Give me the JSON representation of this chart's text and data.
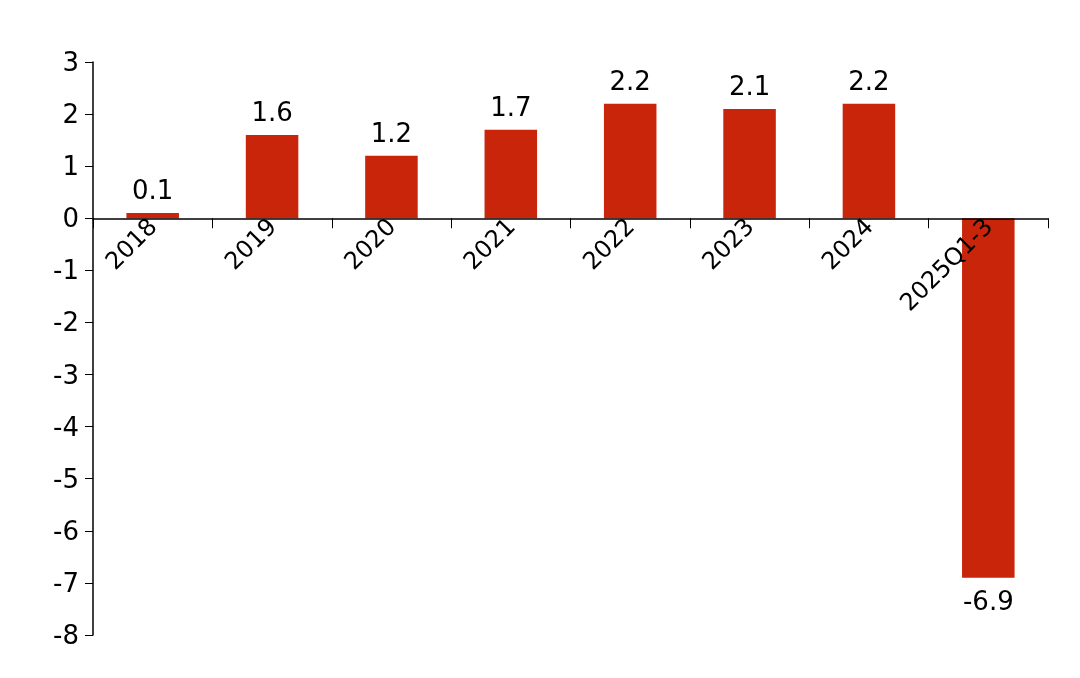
{
  "chart_data": {
    "type": "bar",
    "categories": [
      "2018",
      "2019",
      "2020",
      "2021",
      "2022",
      "2023",
      "2024",
      "2025Q1-3"
    ],
    "values": [
      0.1,
      1.6,
      1.2,
      1.7,
      2.2,
      2.1,
      2.2,
      -6.9
    ],
    "color": "#c8250a",
    "ylim": [
      -8,
      3
    ],
    "yticks": [
      -8,
      -7,
      -6,
      -5,
      -4,
      -3,
      -2,
      -1,
      0,
      1,
      2,
      3
    ],
    "data_labels": true
  }
}
